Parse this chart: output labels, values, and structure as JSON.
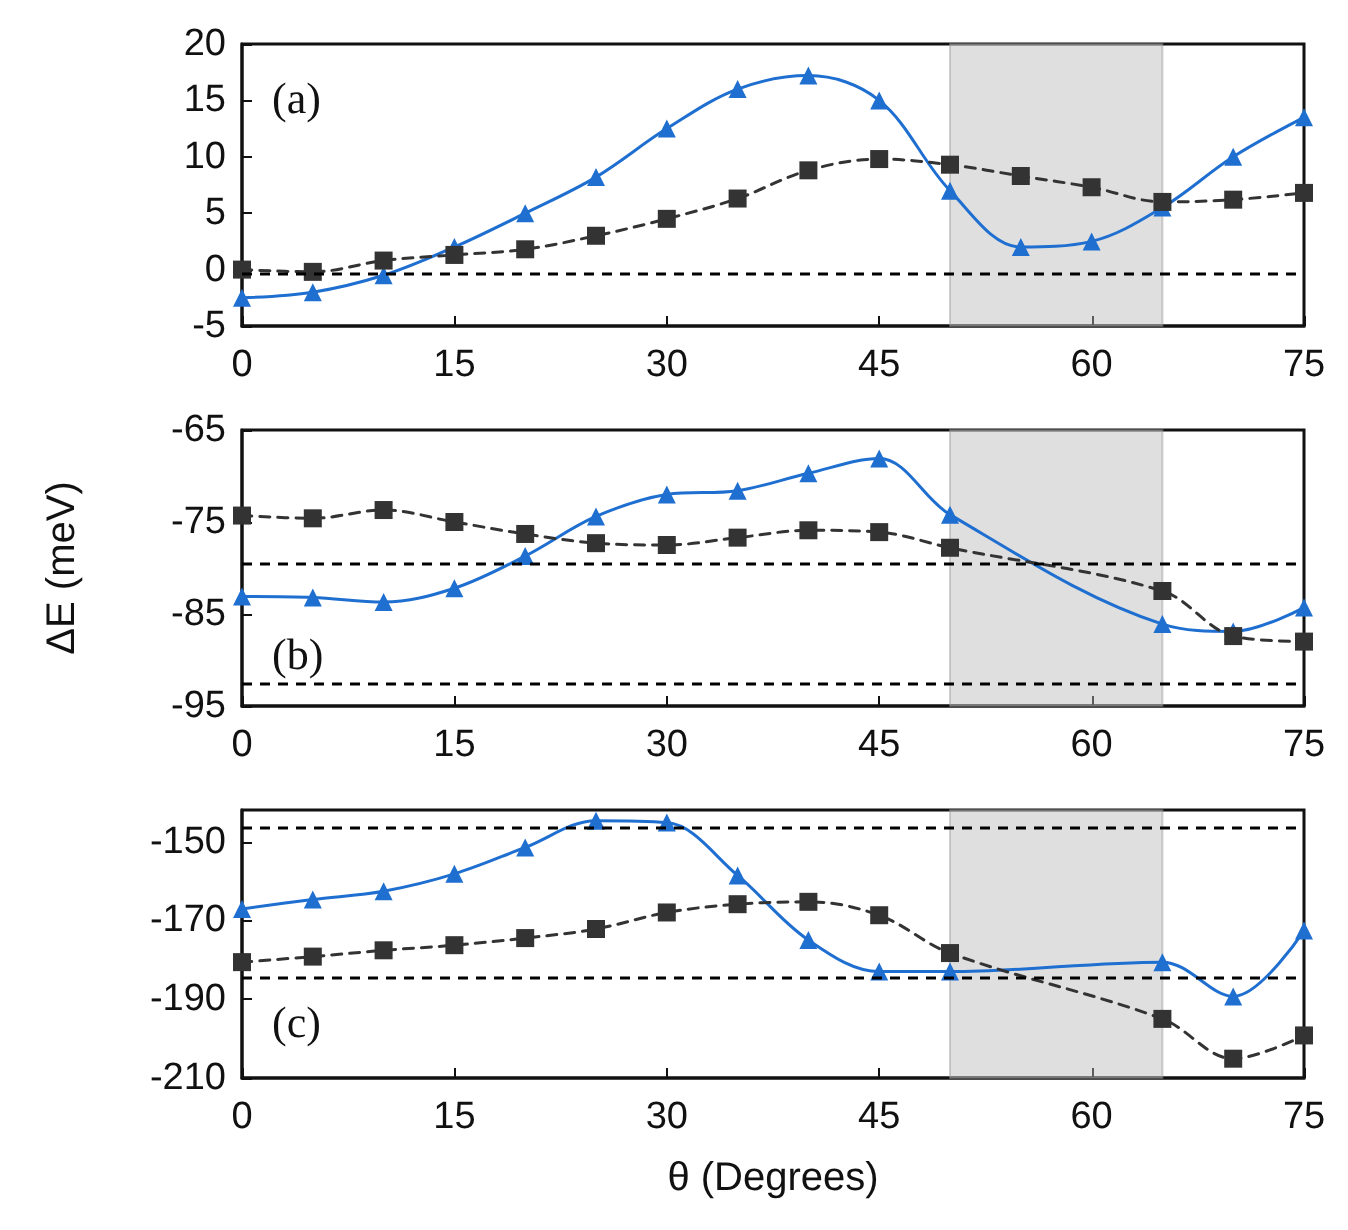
{
  "chart_data": [
    {
      "type": "line",
      "x": [
        0,
        5,
        10,
        15,
        20,
        25,
        30,
        35,
        40,
        45,
        50,
        55,
        60,
        65,
        70,
        75
      ],
      "xlim": [
        0,
        75
      ],
      "xticks": [
        0,
        15,
        30,
        45,
        60,
        75
      ],
      "ylim": [
        -5,
        20
      ],
      "yticks": [
        -5,
        0,
        5,
        10,
        15,
        20
      ],
      "grid": false,
      "annotations": [
        "(a)"
      ],
      "series": [
        {
          "color": "#1f6fd1",
          "marker": "triangle",
          "line_style": "solid",
          "values": [
            -2.5,
            -2,
            -0.5,
            2,
            5,
            8.2,
            12.5,
            16,
            17.2,
            15,
            7,
            2,
            2.5,
            5.5,
            10,
            13.5
          ]
        },
        {
          "color": "#333333",
          "marker": "square",
          "line_style": "dashed",
          "values": [
            0,
            -0.2,
            0.8,
            1.3,
            1.8,
            3,
            4.5,
            6.3,
            8.8,
            9.8,
            9.3,
            8.3,
            7.3,
            6,
            6.2,
            6.8
          ]
        }
      ],
      "ref_lines": [
        {
          "axis": "y",
          "value": -0.3,
          "color": "#000000",
          "line_style": "dashed"
        }
      ],
      "bands": [
        {
          "axis": "x",
          "from": 50,
          "to": 65,
          "color": "#b8b8b8"
        }
      ]
    },
    {
      "type": "line",
      "x": [
        0,
        5,
        10,
        15,
        20,
        25,
        30,
        35,
        40,
        45,
        50,
        55,
        60,
        65,
        70,
        75
      ],
      "xlim": [
        0,
        75
      ],
      "xticks": [
        0,
        15,
        30,
        45,
        60,
        75
      ],
      "ylim": [
        -95,
        -65
      ],
      "yticks": [
        -95,
        -85,
        -75,
        -65
      ],
      "ylabel": "ΔE (meV)",
      "grid": false,
      "annotations": [
        "(b)"
      ],
      "series": [
        {
          "color": "#1f6fd1",
          "marker": "triangle",
          "line_style": "solid",
          "values": [
            -83.1,
            -83.2,
            -83.7,
            -82.2,
            -78.7,
            -74.4,
            -72,
            -71.6,
            -69.7,
            -68.1,
            -74.2,
            null,
            null,
            -86.1,
            -86.9,
            -84.3
          ]
        },
        {
          "color": "#333333",
          "marker": "square",
          "line_style": "dashed",
          "values": [
            -74.3,
            -74.6,
            -73.7,
            -75,
            -76.3,
            -77.3,
            -77.5,
            -76.7,
            -75.9,
            -76.1,
            -77.8,
            null,
            null,
            -82.5,
            -87.4,
            -88
          ]
        }
      ],
      "ref_lines": [
        {
          "axis": "y",
          "value": -79.5,
          "color": "#000000",
          "line_style": "dashed"
        },
        {
          "axis": "y",
          "value": -92.6,
          "color": "#000000",
          "line_style": "dashed"
        }
      ],
      "bands": [
        {
          "axis": "x",
          "from": 50,
          "to": 65,
          "color": "#b8b8b8"
        }
      ]
    },
    {
      "type": "line",
      "x": [
        0,
        5,
        10,
        15,
        20,
        25,
        30,
        35,
        40,
        45,
        50,
        55,
        60,
        65,
        70,
        75
      ],
      "xlim": [
        0,
        75
      ],
      "xticks": [
        0,
        15,
        30,
        45,
        60,
        75
      ],
      "ylim": [
        -210,
        -142
      ],
      "yticks": [
        -150,
        -170,
        -190,
        -210
      ],
      "xlabel": "θ (Degrees)",
      "grid": false,
      "annotations": [
        "(c)"
      ],
      "series": [
        {
          "color": "#1f6fd1",
          "marker": "triangle",
          "line_style": "solid",
          "values": [
            -167.1,
            -164.7,
            -162.6,
            -158.2,
            -151.5,
            -144.7,
            -145.2,
            -158.6,
            -175,
            -183,
            -183,
            null,
            null,
            -180.6,
            -189.3,
            -172.6
          ]
        },
        {
          "color": "#333333",
          "marker": "square",
          "line_style": "dashed",
          "values": [
            -180.6,
            -179.2,
            -177.6,
            -176.3,
            -174.5,
            -172.2,
            -168,
            -165.9,
            -165.3,
            -168.7,
            -178.3,
            null,
            null,
            -195,
            -205.1,
            -199.2
          ]
        }
      ],
      "ref_lines": [
        {
          "axis": "y",
          "value": -146.2,
          "color": "#000000",
          "line_style": "dashed"
        },
        {
          "axis": "y",
          "value": -184.6,
          "color": "#000000",
          "line_style": "dashed"
        }
      ],
      "bands": [
        {
          "axis": "x",
          "from": 50,
          "to": 65,
          "color": "#b8b8b8"
        }
      ]
    }
  ]
}
